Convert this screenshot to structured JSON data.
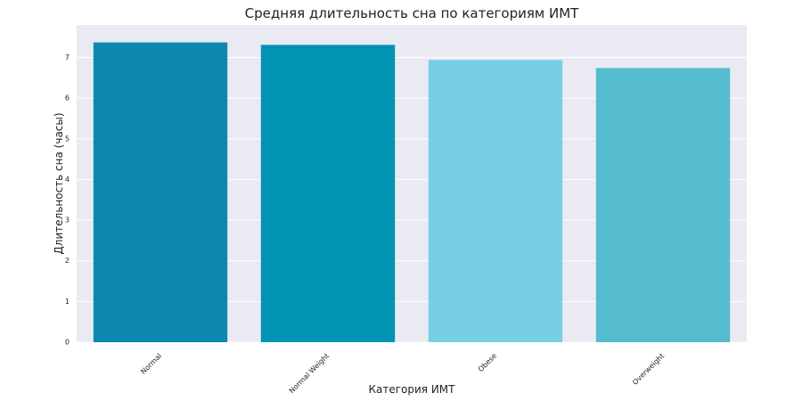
{
  "chart_data": {
    "type": "bar",
    "title": "Средняя длительность сна по категориям ИМТ",
    "x_label": "Категория ИМТ",
    "y_label": "Длительность сна (часы)",
    "categories": [
      "Normal",
      "Normal Weight",
      "Obese",
      "Overweight"
    ],
    "values": [
      7.37,
      7.31,
      6.94,
      6.74
    ],
    "colors": [
      "#0d88b0",
      "#0193b4",
      "#77cfe6",
      "#55bccf"
    ],
    "ylim": [
      0,
      7.8
    ],
    "yticks": [
      0,
      1,
      2,
      3,
      4,
      5,
      6,
      7
    ],
    "grid": true
  }
}
